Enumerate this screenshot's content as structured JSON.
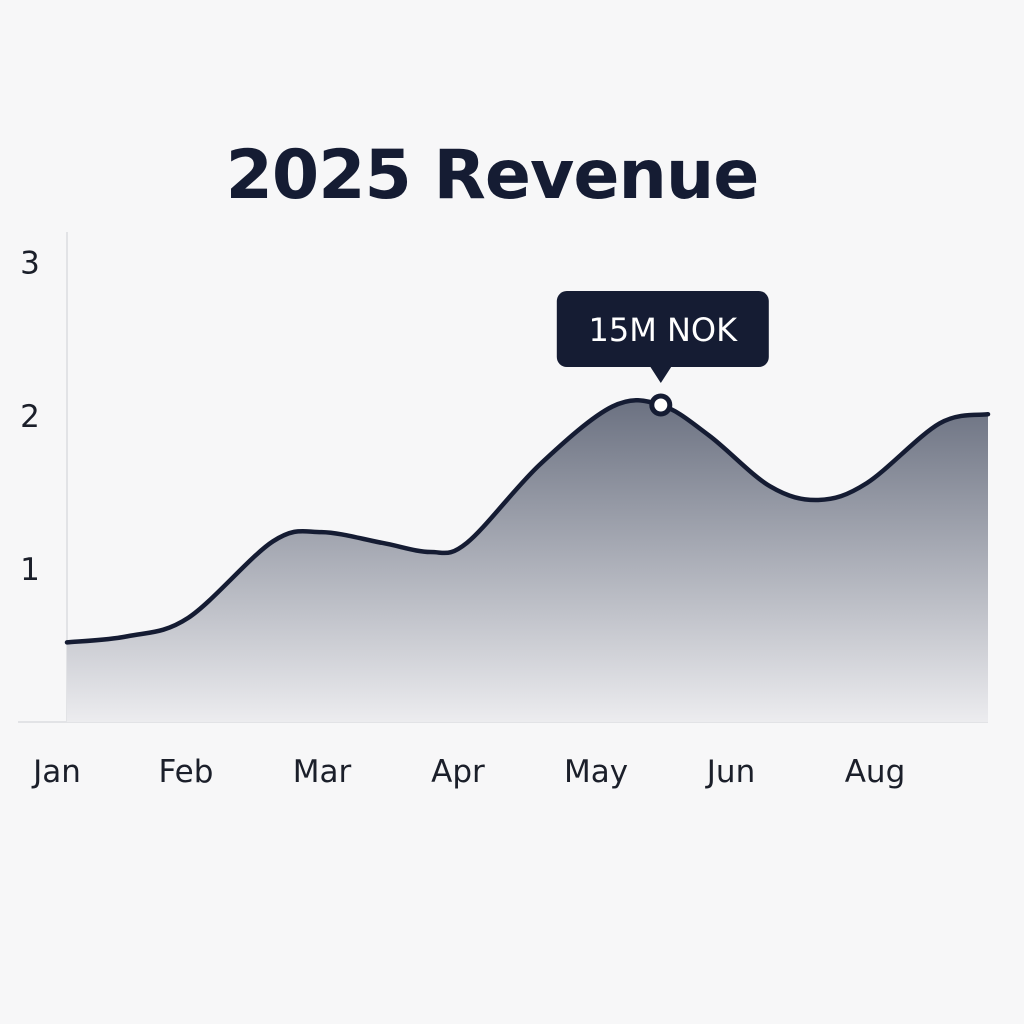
{
  "chart_data": {
    "type": "area",
    "title": "2025 Revenue",
    "xlabel": "",
    "ylabel": "",
    "categories": [
      "Jan",
      "Feb",
      "Mar",
      "Apr",
      "May",
      "Jun",
      "Aug"
    ],
    "ylim": [
      0,
      3.2
    ],
    "yticks": [
      "1",
      "2",
      "3"
    ],
    "series": [
      {
        "points": [
          {
            "x": 0.0,
            "y": 0.52
          },
          {
            "x": 0.5,
            "y": 0.56
          },
          {
            "x": 1.0,
            "y": 0.68
          },
          {
            "x": 1.7,
            "y": 1.18
          },
          {
            "x": 2.1,
            "y": 1.24
          },
          {
            "x": 2.6,
            "y": 1.17
          },
          {
            "x": 3.0,
            "y": 1.11
          },
          {
            "x": 3.3,
            "y": 1.17
          },
          {
            "x": 3.9,
            "y": 1.68
          },
          {
            "x": 4.5,
            "y": 2.06
          },
          {
            "x": 4.9,
            "y": 2.07
          },
          {
            "x": 5.3,
            "y": 1.87
          },
          {
            "x": 5.8,
            "y": 1.54
          },
          {
            "x": 6.2,
            "y": 1.45
          },
          {
            "x": 6.6,
            "y": 1.56
          },
          {
            "x": 7.2,
            "y": 1.95
          },
          {
            "x": 7.6,
            "y": 2.01
          }
        ]
      }
    ],
    "annotation": {
      "x": 4.9,
      "y": 2.07,
      "label": "15M NOK"
    },
    "grid": false,
    "colors": {
      "line": "#151c33",
      "fill_top": "#6b7181",
      "fill_bottom": "#ececef",
      "tooltip": "#151c33",
      "axis": "#e2e3e6"
    }
  }
}
